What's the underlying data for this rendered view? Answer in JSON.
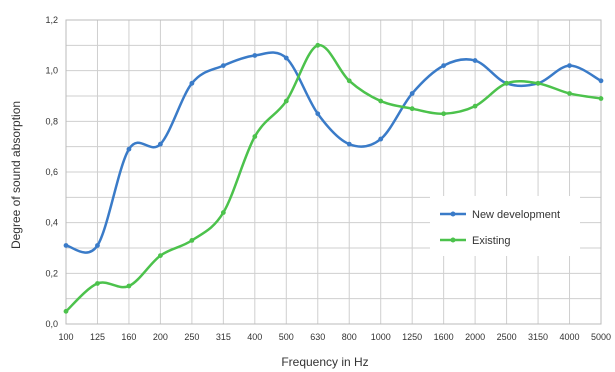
{
  "chart_data": {
    "type": "line",
    "xlabel": "Frequency in Hz",
    "ylabel": "Degree of sound absorption",
    "categories": [
      "100",
      "125",
      "160",
      "200",
      "250",
      "315",
      "400",
      "500",
      "630",
      "800",
      "1000",
      "1250",
      "1600",
      "2000",
      "2500",
      "3150",
      "4000",
      "5000"
    ],
    "y_ticks": [
      "0,0",
      "0,2",
      "0,4",
      "0,6",
      "0,8",
      "1,0",
      "1,2"
    ],
    "ylim": [
      0,
      1.2
    ],
    "grid": true,
    "legend_position": "right",
    "series": [
      {
        "name": "New development",
        "color": "#3a7bc8",
        "values": [
          0.31,
          0.31,
          0.69,
          0.71,
          0.95,
          1.02,
          1.06,
          1.05,
          0.83,
          0.71,
          0.73,
          0.91,
          1.02,
          1.04,
          0.95,
          0.95,
          1.02,
          0.96
        ]
      },
      {
        "name": "Existing",
        "color": "#4cc24c",
        "values": [
          0.05,
          0.16,
          0.15,
          0.27,
          0.33,
          0.44,
          0.74,
          0.88,
          1.1,
          0.96,
          0.88,
          0.85,
          0.83,
          0.86,
          0.95,
          0.95,
          0.91,
          0.89
        ]
      }
    ]
  }
}
